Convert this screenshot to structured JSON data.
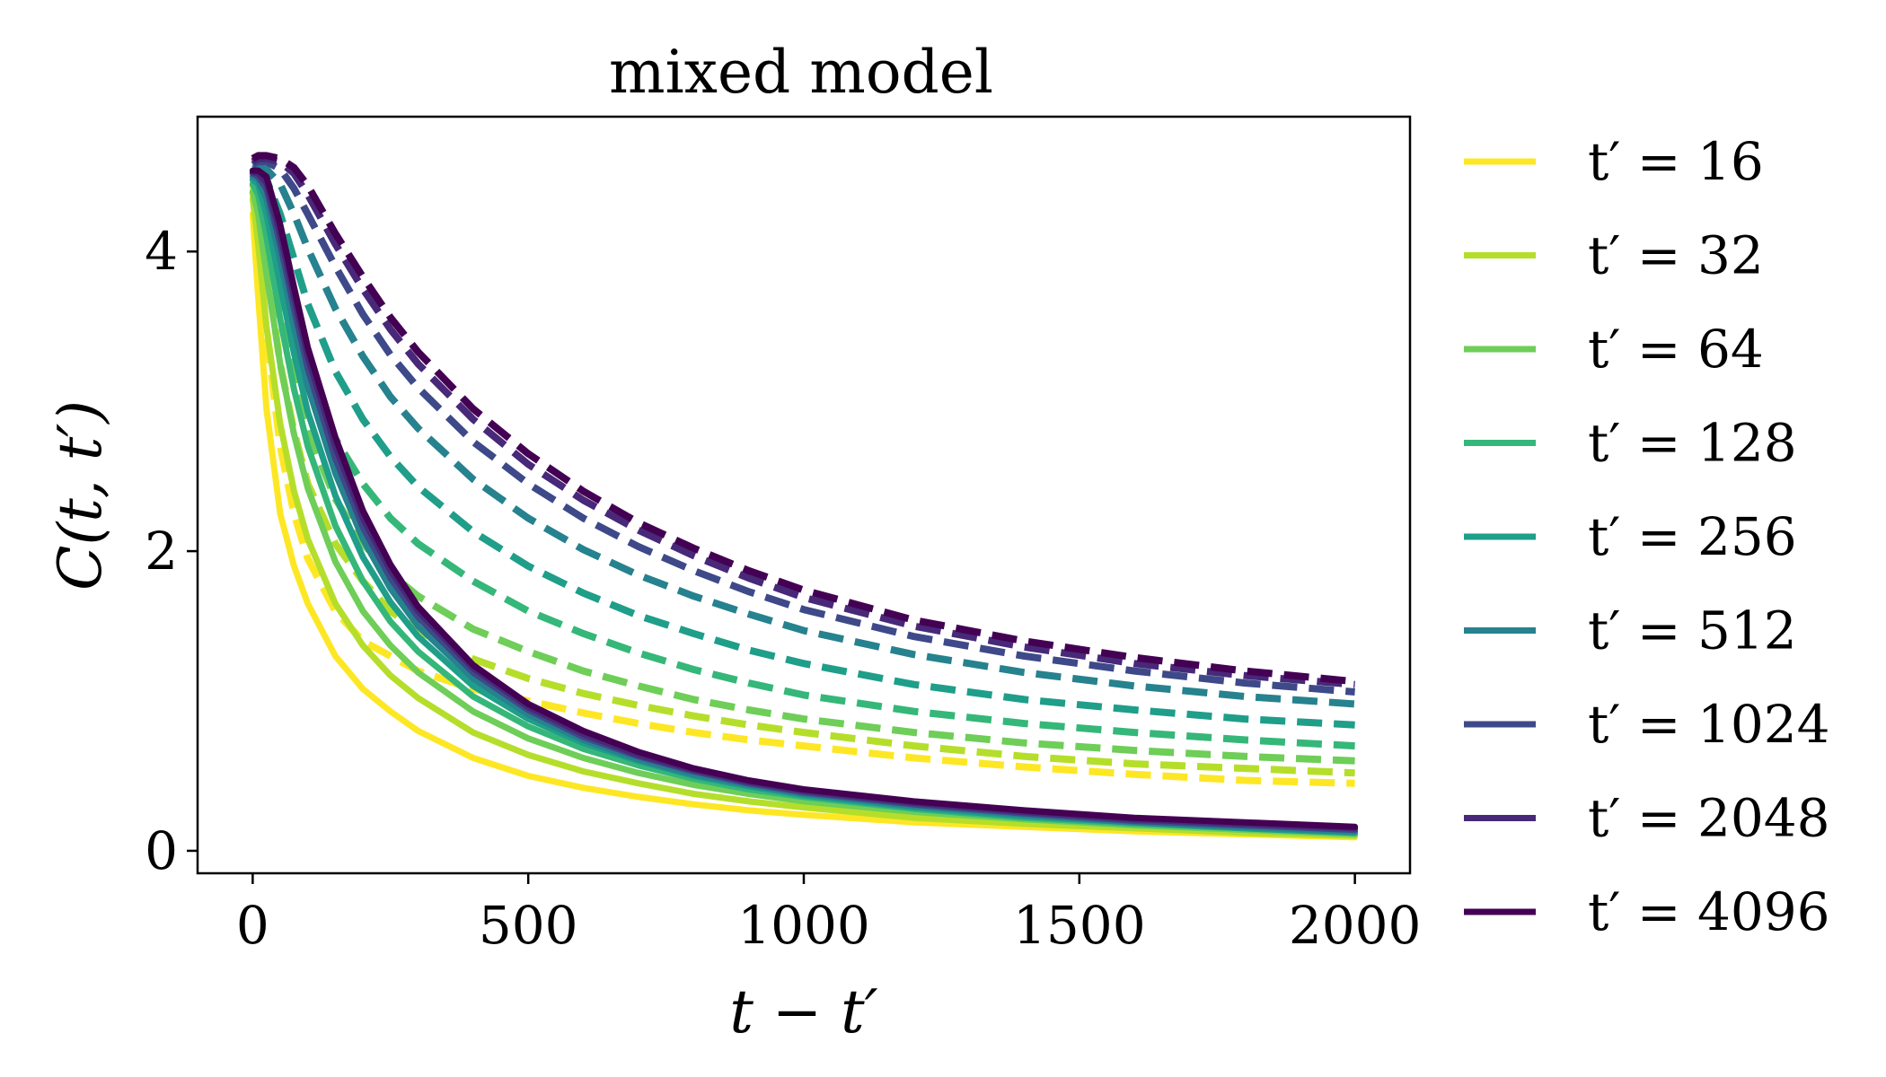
{
  "chart_data": {
    "type": "line",
    "title": "mixed model",
    "xlabel": "t − t′",
    "ylabel": "C(t, t′)",
    "xlim": [
      -100,
      2100
    ],
    "ylim": [
      -0.15,
      4.9
    ],
    "xticks": [
      0,
      500,
      1000,
      1500,
      2000
    ],
    "xtick_labels": [
      "0",
      "500",
      "1000",
      "1500",
      "2000"
    ],
    "yticks": [
      0,
      2,
      4
    ],
    "ytick_labels": [
      "0",
      "2",
      "4"
    ],
    "legend_position": "outside-right",
    "line_styles": {
      "solid": "solid",
      "dashed": "dashed"
    },
    "x": [
      0,
      10,
      25,
      50,
      75,
      100,
      150,
      200,
      250,
      300,
      400,
      500,
      600,
      700,
      800,
      900,
      1000,
      1200,
      1400,
      1600,
      1800,
      2000
    ],
    "series": [
      {
        "name": "t′ = 16",
        "color": "#fde725",
        "solid": [
          4.25,
          3.7,
          2.95,
          2.25,
          1.9,
          1.65,
          1.3,
          1.08,
          0.93,
          0.8,
          0.62,
          0.5,
          0.42,
          0.36,
          0.31,
          0.27,
          0.24,
          0.19,
          0.16,
          0.13,
          0.11,
          0.09
        ],
        "dashed": [
          4.4,
          4.1,
          3.45,
          2.7,
          2.25,
          1.95,
          1.6,
          1.4,
          1.3,
          1.2,
          1.08,
          1.0,
          0.92,
          0.85,
          0.79,
          0.74,
          0.7,
          0.62,
          0.56,
          0.51,
          0.47,
          0.45
        ]
      },
      {
        "name": "t′ = 32",
        "color": "#b5de2b",
        "solid": [
          4.35,
          4.05,
          3.5,
          2.85,
          2.4,
          2.08,
          1.65,
          1.37,
          1.17,
          1.02,
          0.79,
          0.64,
          0.53,
          0.45,
          0.38,
          0.33,
          0.29,
          0.22,
          0.18,
          0.15,
          0.12,
          0.1
        ],
        "dashed": [
          4.45,
          4.3,
          3.9,
          3.25,
          2.8,
          2.45,
          2.05,
          1.8,
          1.6,
          1.47,
          1.28,
          1.15,
          1.05,
          0.97,
          0.9,
          0.84,
          0.79,
          0.7,
          0.63,
          0.58,
          0.55,
          0.52
        ]
      },
      {
        "name": "t′ = 64",
        "color": "#6ece58",
        "solid": [
          4.4,
          4.25,
          3.85,
          3.25,
          2.78,
          2.42,
          1.93,
          1.6,
          1.37,
          1.19,
          0.93,
          0.75,
          0.62,
          0.52,
          0.44,
          0.38,
          0.33,
          0.26,
          0.21,
          0.17,
          0.14,
          0.11
        ],
        "dashed": [
          4.48,
          4.42,
          4.15,
          3.6,
          3.15,
          2.8,
          2.35,
          2.05,
          1.85,
          1.7,
          1.48,
          1.33,
          1.2,
          1.1,
          1.01,
          0.94,
          0.88,
          0.79,
          0.72,
          0.67,
          0.63,
          0.6
        ]
      },
      {
        "name": "t′ = 128",
        "color": "#35b779",
        "solid": [
          4.45,
          4.38,
          4.1,
          3.55,
          3.08,
          2.7,
          2.17,
          1.8,
          1.53,
          1.33,
          1.03,
          0.83,
          0.68,
          0.57,
          0.48,
          0.41,
          0.36,
          0.28,
          0.22,
          0.18,
          0.15,
          0.12
        ],
        "dashed": [
          4.5,
          4.48,
          4.35,
          3.95,
          3.55,
          3.2,
          2.75,
          2.45,
          2.22,
          2.05,
          1.8,
          1.6,
          1.45,
          1.32,
          1.21,
          1.12,
          1.04,
          0.93,
          0.85,
          0.79,
          0.74,
          0.7
        ]
      },
      {
        "name": "t′ = 256",
        "color": "#1f9e89",
        "solid": [
          4.48,
          4.45,
          4.25,
          3.78,
          3.32,
          2.93,
          2.37,
          1.96,
          1.66,
          1.43,
          1.1,
          0.88,
          0.72,
          0.6,
          0.5,
          0.43,
          0.37,
          0.29,
          0.23,
          0.19,
          0.15,
          0.12
        ],
        "dashed": [
          4.52,
          4.52,
          4.48,
          4.25,
          3.95,
          3.65,
          3.2,
          2.88,
          2.63,
          2.43,
          2.13,
          1.9,
          1.72,
          1.57,
          1.45,
          1.34,
          1.25,
          1.11,
          1.01,
          0.94,
          0.88,
          0.84
        ]
      },
      {
        "name": "t′ = 512",
        "color": "#26828e",
        "solid": [
          4.5,
          4.48,
          4.35,
          3.95,
          3.5,
          3.1,
          2.52,
          2.08,
          1.75,
          1.5,
          1.15,
          0.91,
          0.74,
          0.61,
          0.51,
          0.44,
          0.38,
          0.3,
          0.24,
          0.19,
          0.16,
          0.13
        ],
        "dashed": [
          4.55,
          4.56,
          4.55,
          4.45,
          4.25,
          4.02,
          3.62,
          3.3,
          3.03,
          2.82,
          2.48,
          2.22,
          2.01,
          1.84,
          1.7,
          1.58,
          1.47,
          1.31,
          1.19,
          1.1,
          1.03,
          0.98
        ]
      },
      {
        "name": "t′ = 1024",
        "color": "#3e4989",
        "solid": [
          4.52,
          4.5,
          4.42,
          4.05,
          3.62,
          3.22,
          2.62,
          2.16,
          1.82,
          1.56,
          1.19,
          0.94,
          0.76,
          0.63,
          0.53,
          0.45,
          0.39,
          0.31,
          0.25,
          0.2,
          0.17,
          0.14
        ],
        "dashed": [
          4.58,
          4.6,
          4.6,
          4.55,
          4.42,
          4.25,
          3.9,
          3.58,
          3.31,
          3.09,
          2.73,
          2.45,
          2.22,
          2.03,
          1.87,
          1.73,
          1.61,
          1.43,
          1.3,
          1.2,
          1.12,
          1.06
        ]
      },
      {
        "name": "t′ = 2048",
        "color": "#482878",
        "solid": [
          4.53,
          4.52,
          4.46,
          4.12,
          3.7,
          3.3,
          2.7,
          2.22,
          1.87,
          1.6,
          1.22,
          0.96,
          0.78,
          0.64,
          0.54,
          0.46,
          0.4,
          0.32,
          0.26,
          0.21,
          0.18,
          0.15
        ],
        "dashed": [
          4.6,
          4.62,
          4.62,
          4.6,
          4.52,
          4.38,
          4.05,
          3.75,
          3.48,
          3.25,
          2.88,
          2.58,
          2.34,
          2.14,
          1.97,
          1.82,
          1.69,
          1.5,
          1.36,
          1.25,
          1.17,
          1.11
        ]
      },
      {
        "name": "t′ = 4096",
        "color": "#440154",
        "solid": [
          4.54,
          4.54,
          4.5,
          4.18,
          3.76,
          3.36,
          2.76,
          2.27,
          1.91,
          1.63,
          1.24,
          0.98,
          0.8,
          0.66,
          0.55,
          0.47,
          0.41,
          0.33,
          0.27,
          0.22,
          0.19,
          0.16
        ],
        "dashed": [
          4.62,
          4.64,
          4.64,
          4.62,
          4.56,
          4.44,
          4.12,
          3.83,
          3.56,
          3.33,
          2.95,
          2.65,
          2.4,
          2.19,
          2.02,
          1.87,
          1.74,
          1.54,
          1.4,
          1.29,
          1.2,
          1.13
        ]
      }
    ]
  }
}
